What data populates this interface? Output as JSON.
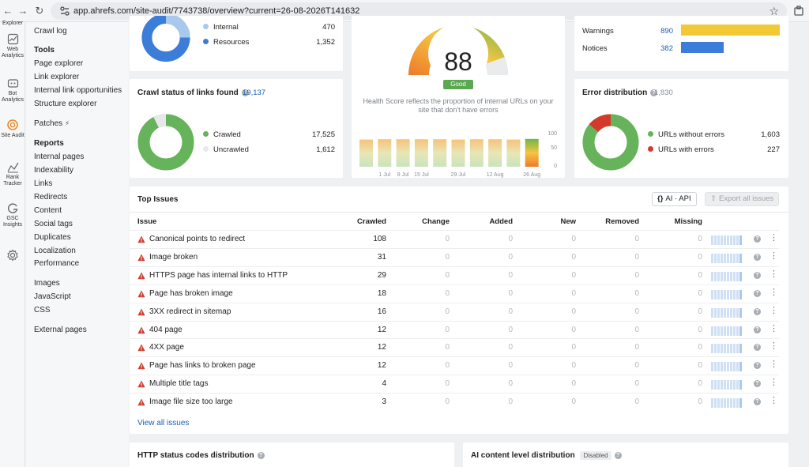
{
  "browser": {
    "url": "app.ahrefs.com/site-audit/7743738/overview?current=26-08-2026T141632"
  },
  "rail": {
    "items": [
      {
        "label": "Explorer"
      },
      {
        "label": "Web Analytics"
      },
      {
        "label": "Bot Analytics"
      },
      {
        "label": "Site Audit"
      },
      {
        "label": "Rank Tracker"
      },
      {
        "label": "GSC Insights"
      }
    ]
  },
  "nav": {
    "crawl_log": "Crawl log",
    "tools_heading": "Tools",
    "tools": [
      "Page explorer",
      "Link explorer",
      "Internal link opportunities",
      "Structure explorer"
    ],
    "patches": "Patches",
    "reports_heading": "Reports",
    "reports": [
      "Internal pages",
      "Indexability",
      "Links",
      "Redirects",
      "Content",
      "Social tags",
      "Duplicates",
      "Localization",
      "Performance"
    ],
    "resources": [
      "Images",
      "JavaScript",
      "CSS"
    ],
    "external": "External pages"
  },
  "urls_card": {
    "legend": [
      {
        "label": "Internal",
        "value": "470",
        "color": "#a9c9ec"
      },
      {
        "label": "Resources",
        "value": "1,352",
        "color": "#3b7dd8"
      }
    ]
  },
  "health": {
    "score": "88",
    "badge": "Good",
    "caption": "Health Score reflects the proportion of internal URLs on your site that don't have errors",
    "bars": [
      86,
      87,
      87,
      87,
      87,
      86,
      87,
      87,
      86,
      88
    ],
    "y_ticks": [
      "100",
      "50",
      "0"
    ],
    "x_ticks": [
      "1 Jul",
      "8 Jul",
      "15 Jul",
      "29 Jul",
      "12 Aug",
      "26 Aug"
    ]
  },
  "issues_summary": {
    "rows": [
      {
        "label": "Warnings",
        "value": "890",
        "color": "#f2c935",
        "fraction": 1.0
      },
      {
        "label": "Notices",
        "value": "382",
        "color": "#3b7dd8",
        "fraction": 0.43
      }
    ]
  },
  "crawl_status": {
    "title": "Crawl status of links found",
    "total": "19,137",
    "legend": [
      {
        "label": "Crawled",
        "value": "17,525",
        "color": "#66b35b"
      },
      {
        "label": "Uncrawled",
        "value": "1,612",
        "color": "#e6e8ea"
      }
    ]
  },
  "error_distribution": {
    "title": "Error distribution",
    "total": "1,830",
    "legend": [
      {
        "label": "URLs without errors",
        "value": "1,603",
        "color": "#66b35b"
      },
      {
        "label": "URLs with errors",
        "value": "227",
        "color": "#d33a2c"
      }
    ]
  },
  "top_issues": {
    "title": "Top Issues",
    "ai_button": "AI · API",
    "export_button": "Export all issues",
    "columns": [
      "Issue",
      "Crawled",
      "Change",
      "Added",
      "New",
      "Removed",
      "Missing"
    ],
    "rows": [
      {
        "issue": "Canonical points to redirect",
        "crawled": "108",
        "change": "0",
        "added": "0",
        "new": "0",
        "removed": "0",
        "missing": "0"
      },
      {
        "issue": "Image broken",
        "crawled": "31",
        "change": "0",
        "added": "0",
        "new": "0",
        "removed": "0",
        "missing": "0"
      },
      {
        "issue": "HTTPS page has internal links to HTTP",
        "crawled": "29",
        "change": "0",
        "added": "0",
        "new": "0",
        "removed": "0",
        "missing": "0"
      },
      {
        "issue": "Page has broken image",
        "crawled": "18",
        "change": "0",
        "added": "0",
        "new": "0",
        "removed": "0",
        "missing": "0"
      },
      {
        "issue": "3XX redirect in sitemap",
        "crawled": "16",
        "change": "0",
        "added": "0",
        "new": "0",
        "removed": "0",
        "missing": "0"
      },
      {
        "issue": "404 page",
        "crawled": "12",
        "change": "0",
        "added": "0",
        "new": "0",
        "removed": "0",
        "missing": "0"
      },
      {
        "issue": "4XX page",
        "crawled": "12",
        "change": "0",
        "added": "0",
        "new": "0",
        "removed": "0",
        "missing": "0"
      },
      {
        "issue": "Page has links to broken page",
        "crawled": "12",
        "change": "0",
        "added": "0",
        "new": "0",
        "removed": "0",
        "missing": "0"
      },
      {
        "issue": "Multiple title tags",
        "crawled": "4",
        "change": "0",
        "added": "0",
        "new": "0",
        "removed": "0",
        "missing": "0"
      },
      {
        "issue": "Image file size too large",
        "crawled": "3",
        "change": "0",
        "added": "0",
        "new": "0",
        "removed": "0",
        "missing": "0"
      }
    ],
    "view_all": "View all issues"
  },
  "http_status": {
    "title": "HTTP status codes distribution"
  },
  "ai_content": {
    "title": "AI content level distribution",
    "badge": "Disabled"
  }
}
